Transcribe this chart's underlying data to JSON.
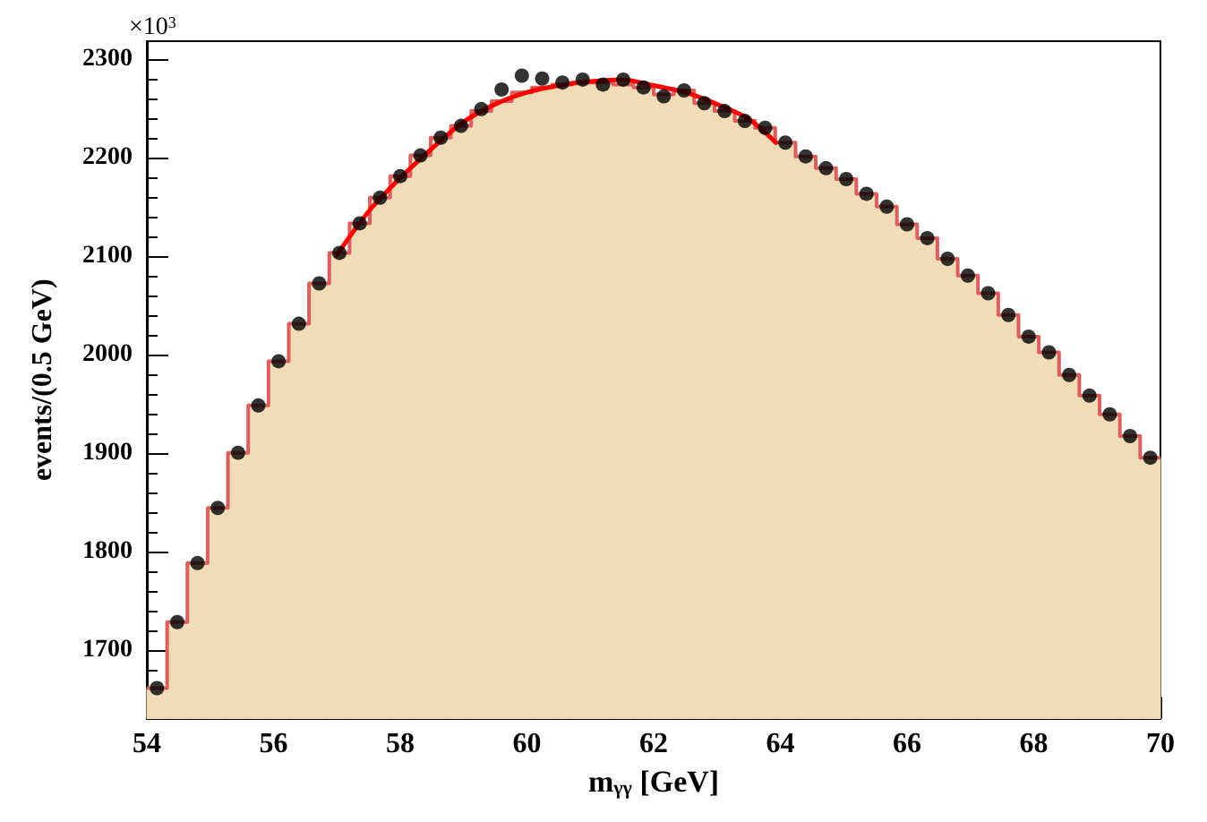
{
  "chart_data": {
    "type": "histogram",
    "xlabel": "m$_{γγ}$ [GeV]",
    "ylabel": "events/(0.5 GeV)",
    "annotations": [
      "×10$^{3}$"
    ],
    "xlim": [
      54,
      70
    ],
    "xticks": [
      54,
      56,
      58,
      60,
      62,
      64,
      66,
      68,
      70
    ],
    "ylim": [
      1630,
      2318
    ],
    "yticks": [
      1700,
      1800,
      1900,
      2000,
      2100,
      2200,
      2300
    ],
    "grid": false,
    "series": [
      {
        "color": "#f2dcb8",
        "bins": [
          54,
          54.32,
          54.64,
          54.96,
          55.28,
          55.6,
          55.92,
          56.24,
          56.56,
          56.88,
          57.2,
          57.52,
          57.84,
          58.16,
          58.48,
          58.8,
          59.12,
          59.44,
          59.76,
          60.08,
          60.4,
          60.72,
          61.04,
          61.36,
          61.68,
          62,
          62.32,
          62.64,
          62.96,
          63.28,
          63.6,
          63.92,
          64.24,
          64.56,
          64.88,
          65.2,
          65.52,
          65.84,
          66.16,
          66.48,
          66.8,
          67.12,
          67.44,
          67.76,
          68.08,
          68.4,
          68.72,
          69.04,
          69.36,
          69.68,
          70
        ],
        "values": [
          1661,
          1728,
          1788,
          1844,
          1900,
          1948,
          1993,
          2031,
          2072,
          2103,
          2133,
          2159,
          2181,
          2202,
          2220,
          2232,
          2247,
          2257,
          2266,
          2271,
          2274,
          2276,
          2276,
          2274,
          2271,
          2264,
          2268,
          2255,
          2247,
          2237,
          2230,
          2215,
          2201,
          2189,
          2178,
          2163,
          2150,
          2132,
          2118,
          2097,
          2080,
          2062,
          2040,
          2018,
          2002,
          1979,
          1958,
          1939,
          1917,
          1895
        ]
      },
      {
        "type": "step",
        "color": "#d9605f",
        "x": [
          54,
          54.32,
          54.64,
          54.96,
          55.28,
          55.6,
          55.92,
          56.24,
          56.56,
          56.88,
          57.2,
          57.52,
          57.84,
          58.16,
          58.48,
          58.8,
          59.12,
          59.44,
          59.76,
          60.08,
          60.4,
          60.72,
          61.04,
          61.36,
          61.68,
          62,
          62.32,
          62.64,
          62.96,
          63.28,
          63.6,
          63.92,
          64.24,
          64.56,
          64.88,
          65.2,
          65.52,
          65.84,
          66.16,
          66.48,
          66.8,
          67.12,
          67.44,
          67.76,
          68.08,
          68.4,
          68.72,
          69.04,
          69.36,
          69.68,
          70
        ],
        "values": [
          1661,
          1728,
          1788,
          1844,
          1900,
          1948,
          1993,
          2031,
          2072,
          2103,
          2133,
          2159,
          2181,
          2202,
          2220,
          2232,
          2247,
          2257,
          2266,
          2271,
          2274,
          2276,
          2276,
          2274,
          2271,
          2264,
          2268,
          2255,
          2247,
          2237,
          2230,
          2215,
          2201,
          2189,
          2178,
          2163,
          2150,
          2132,
          2118,
          2097,
          2080,
          2062,
          2040,
          2018,
          2002,
          1979,
          1958,
          1939,
          1917,
          1895,
          1895
        ]
      },
      {
        "type": "scatter",
        "color": "#000000",
        "marker": "circle",
        "x": [
          54.16,
          54.48,
          54.8,
          55.12,
          55.44,
          55.76,
          56.08,
          56.4,
          56.72,
          57.04,
          57.36,
          57.68,
          58,
          58.32,
          58.64,
          58.96,
          59.28,
          59.6,
          59.92,
          60.24,
          60.56,
          60.88,
          61.2,
          61.52,
          61.84,
          62.16,
          62.48,
          62.8,
          63.12,
          63.44,
          63.76,
          64.08,
          64.4,
          64.72,
          65.04,
          65.36,
          65.68,
          66,
          66.32,
          66.64,
          66.96,
          67.28,
          67.6,
          67.92,
          68.24,
          68.56,
          68.88,
          69.2,
          69.52,
          69.84
        ],
        "values": [
          1661,
          1728,
          1788,
          1844,
          1900,
          1948,
          1993,
          2031,
          2072,
          2103,
          2133,
          2159,
          2181,
          2202,
          2220,
          2232,
          2249,
          2269,
          2283,
          2280,
          2276,
          2279,
          2274,
          2279,
          2271,
          2262,
          2268,
          2255,
          2247,
          2237,
          2230,
          2215,
          2201,
          2189,
          2178,
          2163,
          2150,
          2132,
          2118,
          2097,
          2080,
          2062,
          2040,
          2018,
          2002,
          1979,
          1958,
          1939,
          1917,
          1895
        ]
      },
      {
        "type": "line",
        "color": "#ff0000",
        "line_style": "solid",
        "x": [
          57,
          57.5,
          58,
          58.5,
          59,
          59.5,
          60,
          60.5,
          61,
          61.5,
          62,
          62.5,
          63,
          63.5,
          63.93
        ],
        "values": [
          2101,
          2145,
          2179,
          2209,
          2236,
          2254,
          2266,
          2273,
          2277,
          2279,
          2273,
          2266,
          2254,
          2239,
          2215
        ]
      }
    ]
  }
}
